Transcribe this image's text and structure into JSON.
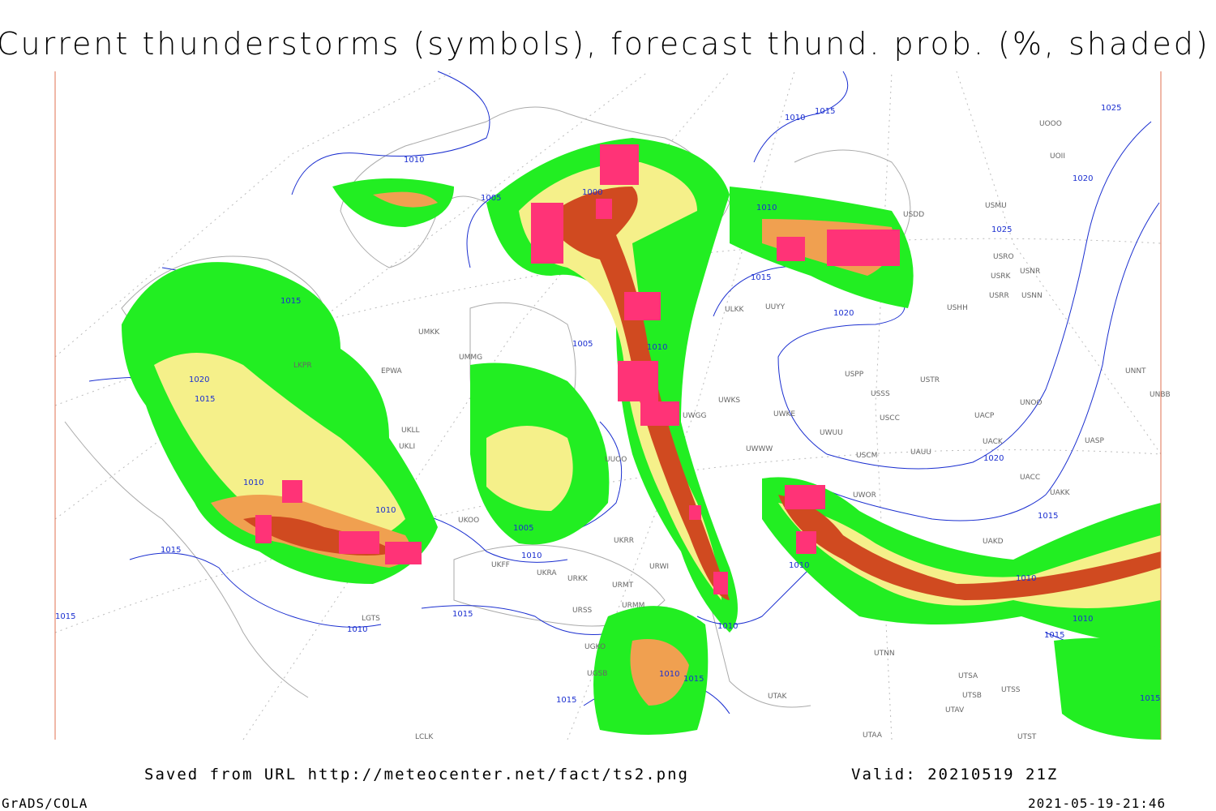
{
  "header": {
    "title": "Current thunderstorms (symbols), forecast thund. prob. (%, shaded)"
  },
  "footer": {
    "source": "Saved from URL http://meteocenter.net/fact/ts2.png",
    "valid": "Valid: 20210519 21Z",
    "software": "GrADS/COLA",
    "timestamp": "2021-05-19-21:46"
  },
  "map": {
    "isobar_labels": [
      "1015",
      "1010",
      "1025",
      "1010",
      "1000",
      "1005",
      "1010",
      "1025",
      "1020",
      "1015",
      "1015",
      "1020",
      "1005",
      "1010",
      "1020",
      "1015",
      "1010",
      "1010",
      "1005",
      "1010",
      "1015",
      "1015",
      "1010",
      "1015",
      "1010",
      "1010",
      "1020",
      "1015",
      "1010",
      "1010",
      "1015",
      "1015",
      "1010",
      "1015",
      "1015"
    ],
    "station_labels": [
      "UOOO",
      "UOII",
      "USMU",
      "USRO",
      "USRK",
      "USNR",
      "USRR",
      "USNN",
      "USHH",
      "USDD",
      "ULKK",
      "UUYY",
      "UMKK",
      "UMMG",
      "EPWA",
      "USPP",
      "USSS",
      "USTR",
      "USCC",
      "UACP",
      "UACK",
      "USCM",
      "UAUU",
      "UNOO",
      "UACC",
      "UAKK",
      "UASP",
      "UNNT",
      "UNBB",
      "UWOR",
      "UAKD",
      "UTNN",
      "UTSA",
      "UTSB",
      "UTSS",
      "UTAV",
      "UTAK",
      "UWGG",
      "UWKS",
      "UWKE",
      "UWUU",
      "UWWW",
      "UUOO",
      "UKOO",
      "UKRR",
      "UKFF",
      "UKRA",
      "URKK",
      "URMT",
      "URMM",
      "URWI",
      "UGKO",
      "UGSB",
      "URSS",
      "LGTS",
      "LCLK",
      "UTAA",
      "UTST",
      "UKLI",
      "UKLL",
      "LKPR"
    ]
  }
}
